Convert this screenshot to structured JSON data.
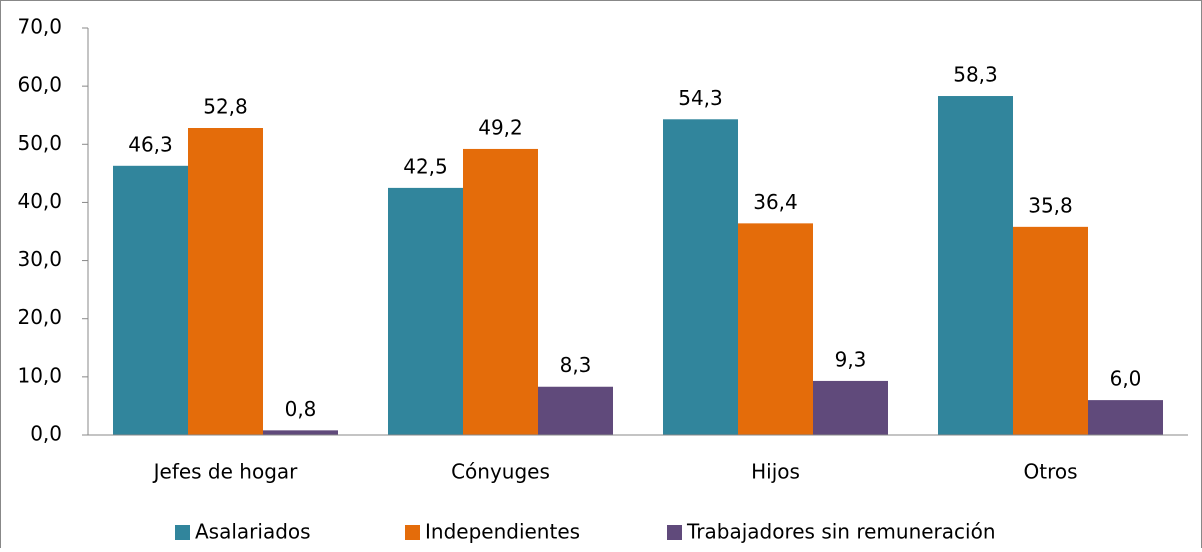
{
  "chart_data": {
    "type": "bar",
    "categories": [
      "Jefes de hogar",
      "Cónyuges",
      "Hijos",
      "Otros"
    ],
    "series": [
      {
        "name": "Asalariados",
        "color": "#31859c",
        "values": [
          46.3,
          42.5,
          54.3,
          58.3
        ],
        "value_labels": [
          "46,3",
          "42,5",
          "54,3",
          "58,3"
        ]
      },
      {
        "name": "Independientes",
        "color": "#e46c0a",
        "values": [
          52.8,
          49.2,
          36.4,
          35.8
        ],
        "value_labels": [
          "52,8",
          "49,2",
          "36,4",
          "35,8"
        ]
      },
      {
        "name": "Trabajadores sin remuneración",
        "color": "#604a7b",
        "values": [
          0.8,
          8.3,
          9.3,
          6.0
        ],
        "value_labels": [
          "0,8",
          "8,3",
          "9,3",
          "6,0"
        ]
      }
    ],
    "ylim": [
      0,
      70
    ],
    "yticks": [
      {
        "value": 0,
        "label": "0,0"
      },
      {
        "value": 10,
        "label": "10,0"
      },
      {
        "value": 20,
        "label": "20,0"
      },
      {
        "value": 30,
        "label": "30,0"
      },
      {
        "value": 40,
        "label": "40,0"
      },
      {
        "value": 50,
        "label": "50,0"
      },
      {
        "value": 60,
        "label": "60,0"
      },
      {
        "value": 70,
        "label": "70,0"
      }
    ],
    "grid": false,
    "legend": "bottom"
  }
}
